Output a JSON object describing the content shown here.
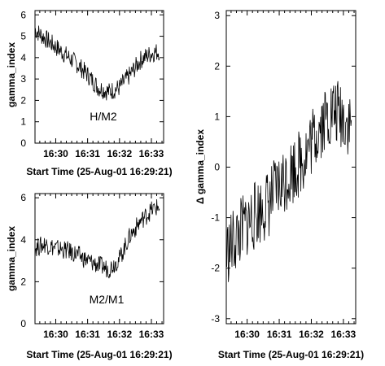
{
  "figure": {
    "panels": [
      {
        "annotation": "H/M2"
      },
      {
        "annotation": "M2/M1"
      },
      {
        "annotation": ""
      }
    ]
  },
  "chart_data": [
    {
      "type": "line",
      "title": "",
      "annotation": "H/M2",
      "xlabel": "Start Time (25-Aug-01 16:29:21)",
      "ylabel": "gamma_index",
      "x_ticks": [
        "16:30",
        "16:31",
        "16:32",
        "16:33"
      ],
      "y_ticks": [
        "0",
        "1",
        "2",
        "3",
        "4",
        "5",
        "6"
      ],
      "ylim": [
        0,
        6.2
      ],
      "grid": false,
      "series": [
        {
          "x": [
            "16:29:21",
            "16:29:40",
            "16:30:00",
            "16:30:20",
            "16:30:40",
            "16:31:00",
            "16:31:20",
            "16:31:40",
            "16:32:00",
            "16:32:20",
            "16:32:40",
            "16:33:00",
            "16:33:15"
          ],
          "values": [
            5.3,
            4.9,
            4.5,
            4.1,
            3.7,
            3.2,
            2.6,
            2.4,
            2.6,
            3.2,
            3.9,
            4.2,
            4.3
          ]
        }
      ]
    },
    {
      "type": "line",
      "title": "",
      "annotation": "M2/M1",
      "xlabel": "Start Time (25-Aug-01 16:29:21)",
      "ylabel": "gamma_index",
      "x_ticks": [
        "16:30",
        "16:31",
        "16:32",
        "16:33"
      ],
      "y_ticks": [
        "0",
        "2",
        "4",
        "6"
      ],
      "ylim": [
        0,
        6.2
      ],
      "grid": false,
      "series": [
        {
          "x": [
            "16:29:21",
            "16:29:40",
            "16:30:00",
            "16:30:20",
            "16:30:40",
            "16:31:00",
            "16:31:20",
            "16:31:40",
            "16:32:00",
            "16:32:20",
            "16:32:40",
            "16:33:00",
            "16:33:15"
          ],
          "values": [
            3.6,
            3.8,
            3.6,
            3.5,
            3.3,
            3.0,
            2.8,
            2.6,
            3.1,
            4.2,
            4.9,
            5.4,
            5.6
          ]
        }
      ]
    },
    {
      "type": "line",
      "title": "",
      "xlabel": "Start Time (25-Aug-01 16:29:21)",
      "ylabel": "Δ gamma_index",
      "x_ticks": [
        "16:30",
        "16:31",
        "16:32",
        "16:33"
      ],
      "y_ticks": [
        "-3",
        "-2",
        "-1",
        "0",
        "1",
        "2",
        "3"
      ],
      "ylim": [
        -3.1,
        3.1
      ],
      "grid": false,
      "series": [
        {
          "x": [
            "16:29:21",
            "16:29:40",
            "16:30:00",
            "16:30:20",
            "16:30:40",
            "16:31:00",
            "16:31:20",
            "16:31:40",
            "16:32:00",
            "16:32:20",
            "16:32:40",
            "16:33:00",
            "16:33:15"
          ],
          "values": [
            -1.7,
            -1.4,
            -1.1,
            -0.9,
            -0.7,
            -0.4,
            -0.1,
            0.1,
            0.5,
            0.9,
            1.1,
            1.0,
            0.8
          ]
        }
      ]
    }
  ]
}
